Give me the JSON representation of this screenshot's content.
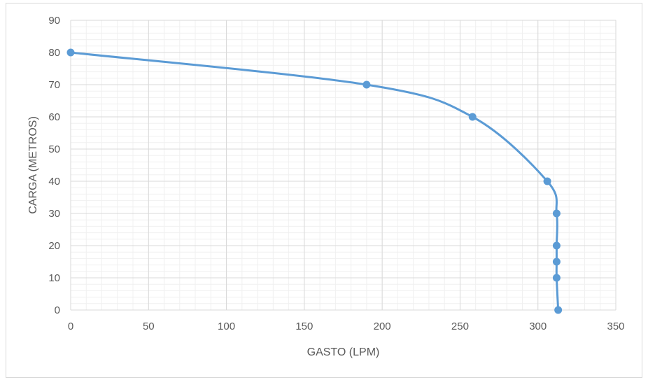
{
  "chart_data": {
    "type": "line",
    "xlabel": "GASTO (LPM)",
    "ylabel": "CARGA (METROS)",
    "xlim": [
      0,
      350
    ],
    "ylim": [
      0,
      90
    ],
    "x_major_step": 50,
    "x_minor_step": 10,
    "y_major_step": 10,
    "y_minor_step": 2,
    "grid": true,
    "smooth": true,
    "line_color": "#5b9bd5",
    "series": [
      {
        "x": [
          0,
          190,
          258,
          306,
          312,
          312,
          312,
          312,
          313
        ],
        "y": [
          80,
          70,
          60,
          40,
          30,
          20,
          15,
          10,
          0
        ]
      }
    ]
  }
}
